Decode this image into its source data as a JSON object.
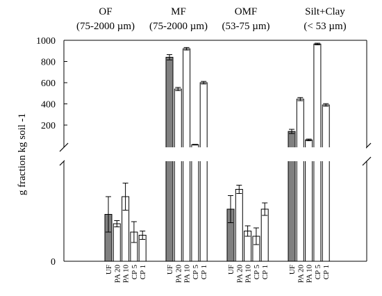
{
  "chart_data": {
    "type": "bar",
    "ylabel": "g fraction kg soil -1",
    "upper_ylim": [
      0,
      1000
    ],
    "upper_yticks": [
      200,
      400,
      600,
      800,
      1000
    ],
    "lower_ytick_label": "0",
    "treatments": [
      "UF",
      "PA 20",
      "PA 10",
      "CP 5",
      "CP 1"
    ],
    "colors": {
      "UF": "#808080",
      "other": "#ffffff",
      "edge": "#000000"
    },
    "groups": [
      {
        "label_line1": "OF",
        "label_line2": "(75-2000 µm)",
        "bars": [
          {
            "treatment": "UF",
            "value": 45,
            "error": 17,
            "panel": "lower"
          },
          {
            "treatment": "PA 20",
            "value": 36,
            "error": 3,
            "panel": "lower"
          },
          {
            "treatment": "PA 10",
            "value": 62,
            "error": 13,
            "panel": "lower"
          },
          {
            "treatment": "CP 5",
            "value": 28,
            "error": 10,
            "panel": "lower"
          },
          {
            "treatment": "CP 1",
            "value": 25,
            "error": 4,
            "panel": "lower"
          }
        ]
      },
      {
        "label_line1": "MF",
        "label_line2": "(75-2000 µm)",
        "bars": [
          {
            "treatment": "UF",
            "value": 840,
            "error": 25,
            "panel": "upper"
          },
          {
            "treatment": "PA 20",
            "value": 540,
            "error": 15,
            "panel": "upper"
          },
          {
            "treatment": "PA 10",
            "value": 920,
            "error": 12,
            "panel": "upper"
          },
          {
            "treatment": "CP 5",
            "value": 15,
            "error": 3,
            "panel": "upper"
          },
          {
            "treatment": "CP 1",
            "value": 600,
            "error": 12,
            "panel": "upper"
          }
        ]
      },
      {
        "label_line1": "OMF",
        "label_line2": "(53-75 µm)",
        "bars": [
          {
            "treatment": "UF",
            "value": 50,
            "error": 13,
            "panel": "lower"
          },
          {
            "treatment": "PA 20",
            "value": 69,
            "error": 4,
            "panel": "lower"
          },
          {
            "treatment": "PA 10",
            "value": 29,
            "error": 5,
            "panel": "lower"
          },
          {
            "treatment": "CP 5",
            "value": 24,
            "error": 8,
            "panel": "lower"
          },
          {
            "treatment": "CP 1",
            "value": 50,
            "error": 6,
            "panel": "lower"
          }
        ]
      },
      {
        "label_line1": "Silt+Clay",
        "label_line2": "(< 53 µm)",
        "bars": [
          {
            "treatment": "UF",
            "value": 140,
            "error": 20,
            "panel": "upper"
          },
          {
            "treatment": "PA 20",
            "value": 445,
            "error": 15,
            "panel": "upper"
          },
          {
            "treatment": "PA 10",
            "value": 60,
            "error": 8,
            "panel": "upper"
          },
          {
            "treatment": "CP 5",
            "value": 965,
            "error": 8,
            "panel": "upper"
          },
          {
            "treatment": "CP 1",
            "value": 390,
            "error": 12,
            "panel": "upper"
          }
        ]
      }
    ]
  }
}
